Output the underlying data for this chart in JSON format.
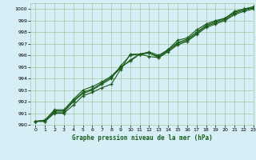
{
  "xlabel": "Graphe pression niveau de la mer (hPa)",
  "xlim": [
    -0.5,
    23
  ],
  "ylim": [
    990,
    1000.5
  ],
  "yticks": [
    990,
    991,
    992,
    993,
    994,
    995,
    996,
    997,
    998,
    999,
    1000
  ],
  "xticks": [
    0,
    1,
    2,
    3,
    4,
    5,
    6,
    7,
    8,
    9,
    10,
    11,
    12,
    13,
    14,
    15,
    16,
    17,
    18,
    19,
    20,
    21,
    22,
    23
  ],
  "bg_color": "#d6eef5",
  "grid_color": "#a0c8a0",
  "line_color": "#1a5c1a",
  "series": [
    [
      990.3,
      990.3,
      991.0,
      991.0,
      991.7,
      992.5,
      992.8,
      993.2,
      993.5,
      994.8,
      996.1,
      996.1,
      995.9,
      995.8,
      996.5,
      997.3,
      997.5,
      998.2,
      998.7,
      999.0,
      999.2,
      999.8,
      1000.0,
      1000.1
    ],
    [
      990.3,
      990.3,
      991.1,
      991.1,
      992.0,
      992.7,
      993.0,
      993.5,
      994.0,
      995.1,
      996.0,
      996.1,
      996.2,
      995.8,
      996.3,
      996.9,
      997.2,
      997.8,
      998.4,
      998.7,
      999.0,
      999.5,
      999.8,
      1000.0
    ],
    [
      990.3,
      990.4,
      991.2,
      991.2,
      992.1,
      992.8,
      993.1,
      993.6,
      994.1,
      994.9,
      995.6,
      996.1,
      996.2,
      995.9,
      996.4,
      997.0,
      997.3,
      997.9,
      998.5,
      998.8,
      999.1,
      999.6,
      999.9,
      1000.1
    ],
    [
      990.3,
      990.4,
      991.3,
      991.3,
      992.2,
      993.0,
      993.3,
      993.7,
      994.2,
      995.0,
      995.5,
      996.1,
      996.3,
      996.0,
      996.5,
      997.1,
      997.4,
      998.0,
      998.6,
      998.9,
      999.2,
      999.7,
      1000.0,
      1000.2
    ]
  ]
}
